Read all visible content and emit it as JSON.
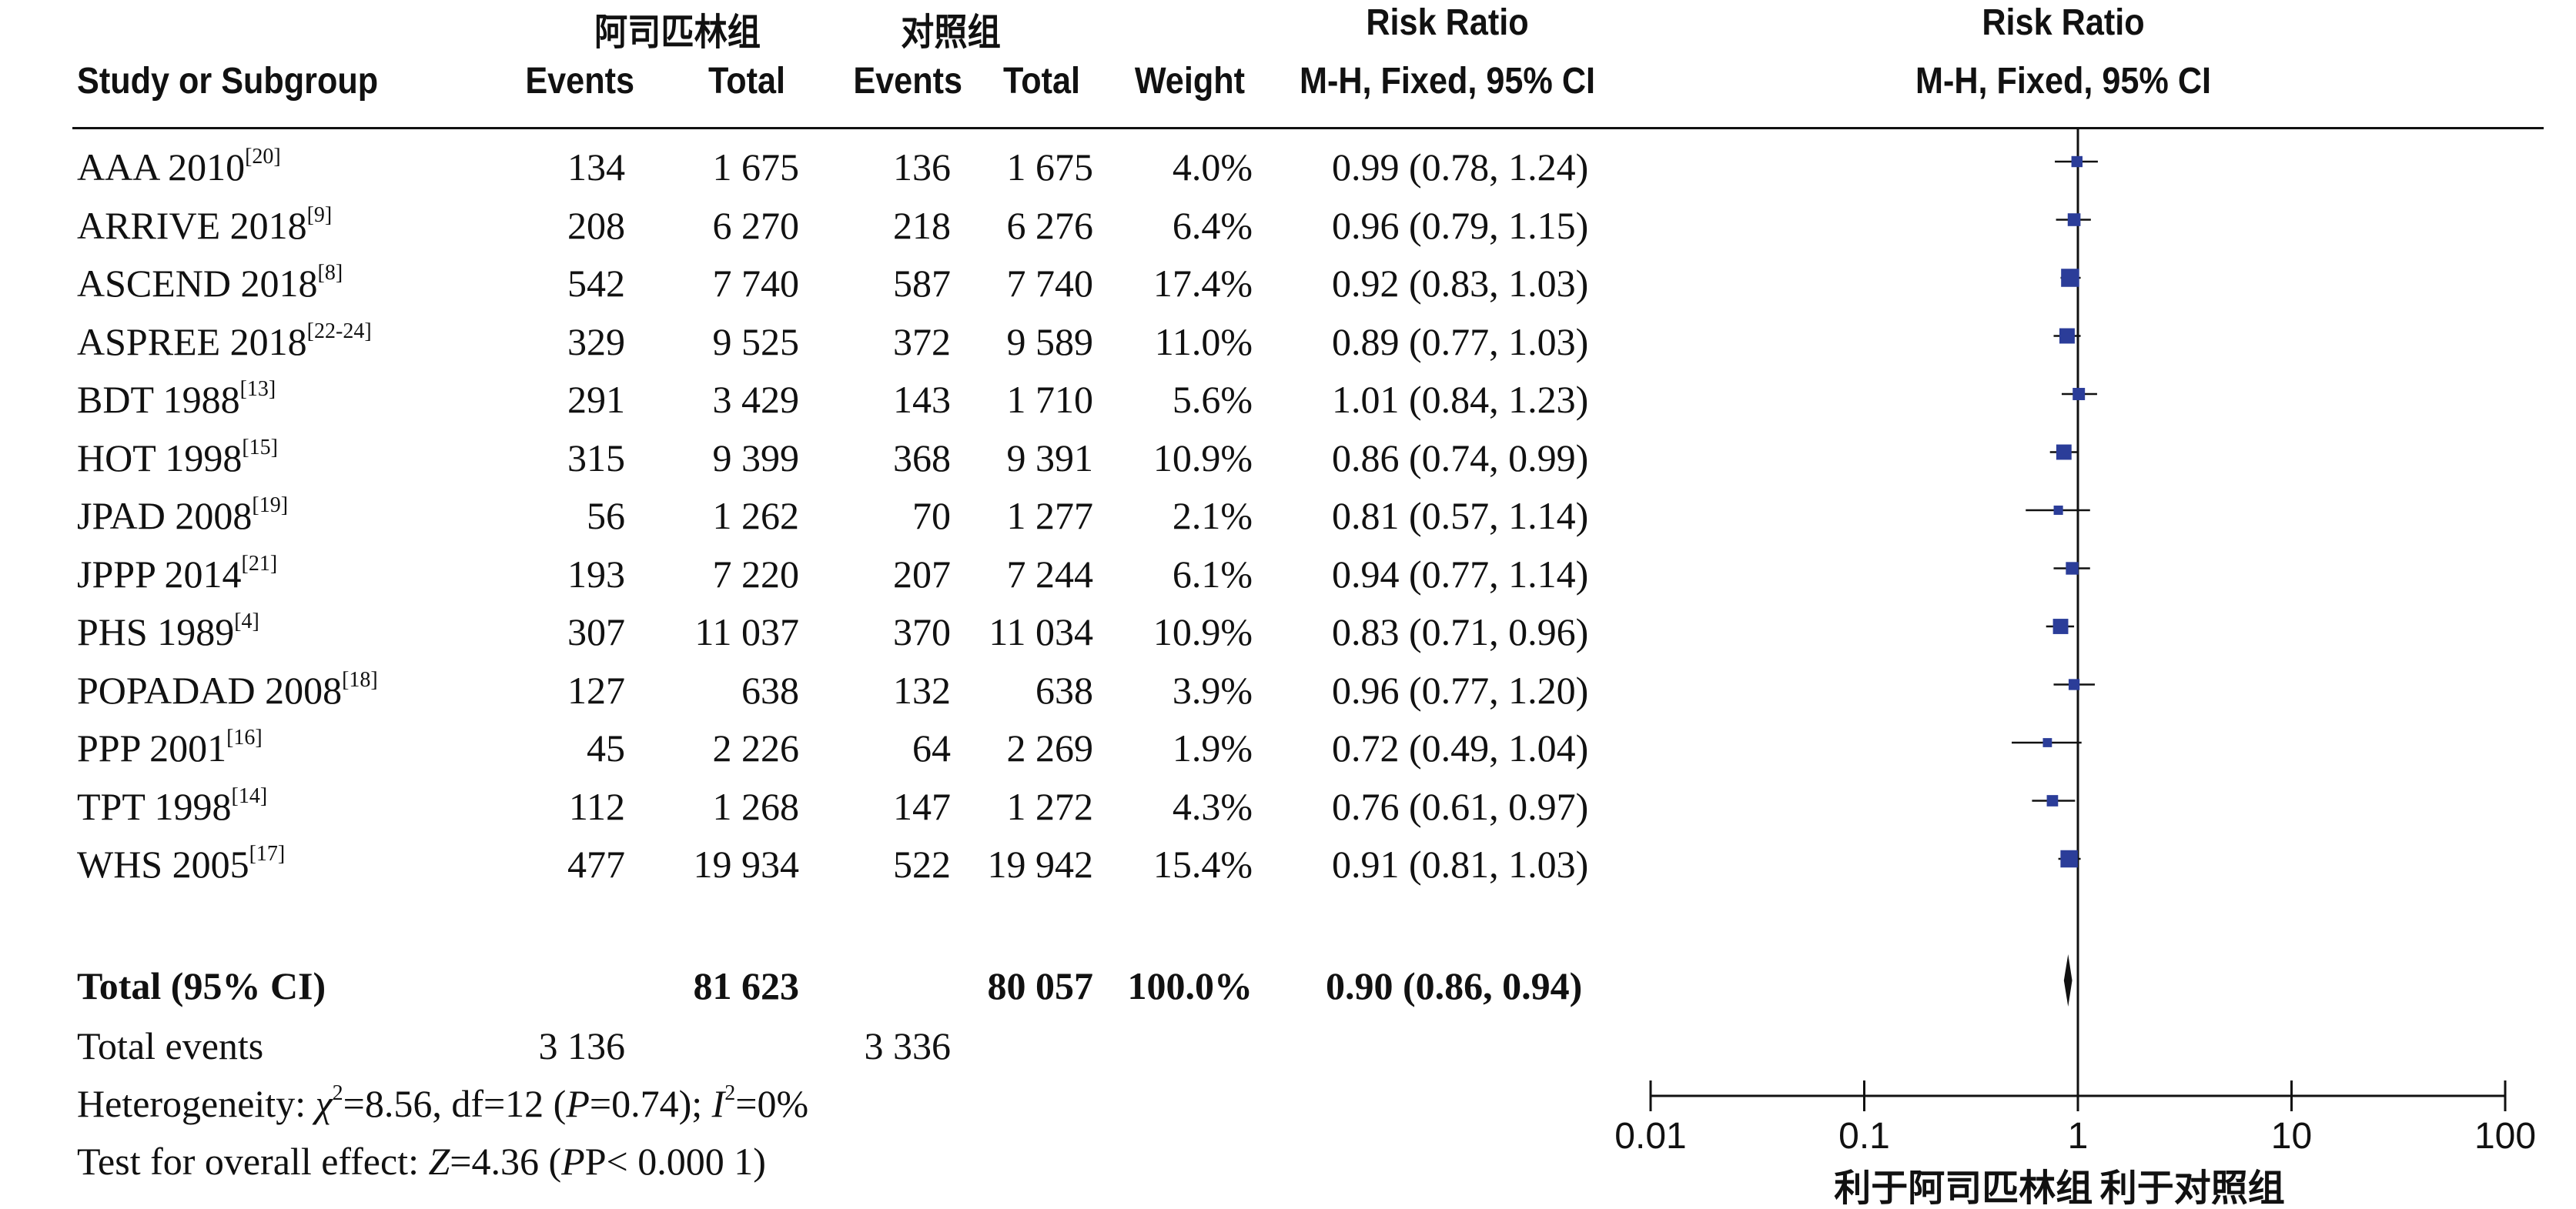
{
  "header": {
    "group1_name": "阿司匹林组",
    "group2_name": "对照组",
    "study_col": "Study or Subgroup",
    "events_col": "Events",
    "total_col": "Total",
    "weight_col": "Weight",
    "rr_title": "Risk Ratio",
    "rr_method": "M-H, Fixed, 95% CI",
    "plot_title": "Risk Ratio",
    "plot_method": "M-H, Fixed, 95% CI"
  },
  "studies": [
    {
      "name": "AAA 2010",
      "ref": "[20]",
      "e1": "134",
      "t1": "1 675",
      "e2": "136",
      "t2": "1 675",
      "weight": "4.0%",
      "ci_text": "0.99 (0.78, 1.24)"
    },
    {
      "name": "ARRIVE 2018",
      "ref": "[9]",
      "e1": "208",
      "t1": "6 270",
      "e2": "218",
      "t2": "6 276",
      "weight": "6.4%",
      "ci_text": "0.96 (0.79, 1.15)"
    },
    {
      "name": "ASCEND 2018",
      "ref": "[8]",
      "e1": "542",
      "t1": "7 740",
      "e2": "587",
      "t2": "7 740",
      "weight": "17.4%",
      "ci_text": "0.92 (0.83, 1.03)"
    },
    {
      "name": "ASPREE 2018",
      "ref": "[22-24]",
      "e1": "329",
      "t1": "9 525",
      "e2": "372",
      "t2": "9 589",
      "weight": "11.0%",
      "ci_text": "0.89 (0.77, 1.03)"
    },
    {
      "name": "BDT 1988",
      "ref": "[13]",
      "e1": "291",
      "t1": "3 429",
      "e2": "143",
      "t2": "1 710",
      "weight": "5.6%",
      "ci_text": "1.01 (0.84, 1.23)"
    },
    {
      "name": "HOT 1998",
      "ref": "[15]",
      "e1": "315",
      "t1": "9 399",
      "e2": "368",
      "t2": "9 391",
      "weight": "10.9%",
      "ci_text": "0.86 (0.74, 0.99)"
    },
    {
      "name": "JPAD 2008",
      "ref": "[19]",
      "e1": "56",
      "t1": "1 262",
      "e2": "70",
      "t2": "1 277",
      "weight": "2.1%",
      "ci_text": "0.81 (0.57, 1.14)"
    },
    {
      "name": "JPPP 2014",
      "ref": "[21]",
      "e1": "193",
      "t1": "7 220",
      "e2": "207",
      "t2": "7 244",
      "weight": "6.1%",
      "ci_text": "0.94 (0.77, 1.14)"
    },
    {
      "name": "PHS 1989",
      "ref": "[4]",
      "e1": "307",
      "t1": "11 037",
      "e2": "370",
      "t2": "11 034",
      "weight": "10.9%",
      "ci_text": "0.83 (0.71, 0.96)"
    },
    {
      "name": "POPADAD 2008",
      "ref": "[18]",
      "e1": "127",
      "t1": "638",
      "e2": "132",
      "t2": "638",
      "weight": "3.9%",
      "ci_text": "0.96 (0.77, 1.20)"
    },
    {
      "name": "PPP 2001",
      "ref": "[16]",
      "e1": "45",
      "t1": "2 226",
      "e2": "64",
      "t2": "2 269",
      "weight": "1.9%",
      "ci_text": "0.72 (0.49, 1.04)"
    },
    {
      "name": "TPT 1998",
      "ref": "[14]",
      "e1": "112",
      "t1": "1 268",
      "e2": "147",
      "t2": "1 272",
      "weight": "4.3%",
      "ci_text": "0.76 (0.61, 0.97)"
    },
    {
      "name": "WHS 2005",
      "ref": "[17]",
      "e1": "477",
      "t1": "19 934",
      "e2": "522",
      "t2": "19 942",
      "weight": "15.4%",
      "ci_text": "0.91 (0.81, 1.03)"
    }
  ],
  "total": {
    "label": "Total (95% CI)",
    "t1": "81 623",
    "t2": "80 057",
    "weight": "100.0%",
    "ci_text": "0.90 (0.86, 0.94)"
  },
  "total_events": {
    "label": "Total events",
    "e1": "3 136",
    "e2": "3 336"
  },
  "heterogeneity": {
    "label": "Heterogeneity: ",
    "chi2": "8.56",
    "df": "12",
    "p": "0.74",
    "i2": "0%"
  },
  "overall_effect": {
    "label": "Test for overall effect: ",
    "z": "4.36",
    "p": "P< 0.000 1"
  },
  "favours": {
    "left": "利于阿司匹林组",
    "right": "利于对照组"
  },
  "chart_data": {
    "type": "forest",
    "scale": "log",
    "xlim": [
      0.01,
      100
    ],
    "ticks": [
      0.01,
      0.1,
      1,
      10,
      100
    ],
    "tick_labels": [
      "0.01",
      "0.1",
      "1",
      "10",
      "100"
    ],
    "reference_line": 1,
    "marker_color": "#2b3d99",
    "points": [
      {
        "study": "AAA 2010",
        "rr": 0.99,
        "lo": 0.78,
        "hi": 1.24,
        "weight": 4.0
      },
      {
        "study": "ARRIVE 2018",
        "rr": 0.96,
        "lo": 0.79,
        "hi": 1.15,
        "weight": 6.4
      },
      {
        "study": "ASCEND 2018",
        "rr": 0.92,
        "lo": 0.83,
        "hi": 1.03,
        "weight": 17.4
      },
      {
        "study": "ASPREE 2018",
        "rr": 0.89,
        "lo": 0.77,
        "hi": 1.03,
        "weight": 11.0
      },
      {
        "study": "BDT 1988",
        "rr": 1.01,
        "lo": 0.84,
        "hi": 1.23,
        "weight": 5.6
      },
      {
        "study": "HOT 1998",
        "rr": 0.86,
        "lo": 0.74,
        "hi": 0.99,
        "weight": 10.9
      },
      {
        "study": "JPAD 2008",
        "rr": 0.81,
        "lo": 0.57,
        "hi": 1.14,
        "weight": 2.1
      },
      {
        "study": "JPPP 2014",
        "rr": 0.94,
        "lo": 0.77,
        "hi": 1.14,
        "weight": 6.1
      },
      {
        "study": "PHS 1989",
        "rr": 0.83,
        "lo": 0.71,
        "hi": 0.96,
        "weight": 10.9
      },
      {
        "study": "POPADAD 2008",
        "rr": 0.96,
        "lo": 0.77,
        "hi": 1.2,
        "weight": 3.9
      },
      {
        "study": "PPP 2001",
        "rr": 0.72,
        "lo": 0.49,
        "hi": 1.04,
        "weight": 1.9
      },
      {
        "study": "TPT 1998",
        "rr": 0.76,
        "lo": 0.61,
        "hi": 0.97,
        "weight": 4.3
      },
      {
        "study": "WHS 2005",
        "rr": 0.91,
        "lo": 0.81,
        "hi": 1.03,
        "weight": 15.4
      }
    ],
    "pooled": {
      "rr": 0.9,
      "lo": 0.86,
      "hi": 0.94
    }
  }
}
